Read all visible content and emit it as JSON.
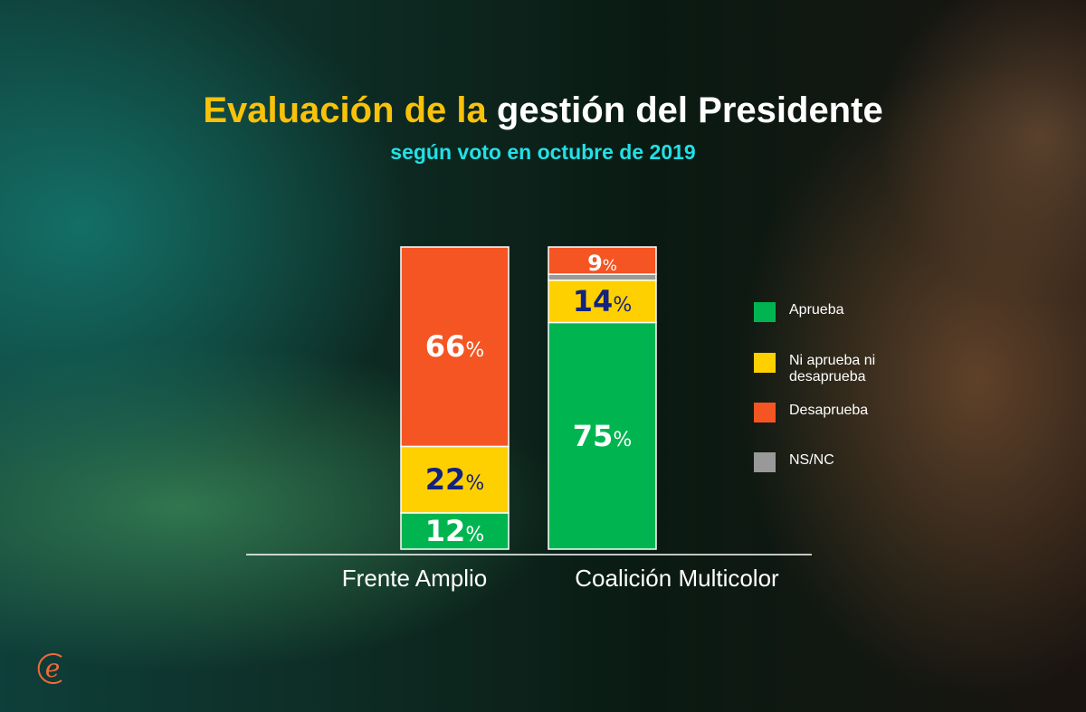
{
  "title": {
    "part1": "Evaluación de la",
    "part2": "gestión del Presidente"
  },
  "subtitle": "según voto en octubre de 2019",
  "colors": {
    "Aprueba": "#00b550",
    "Ni aprueba ni desaprueba": "#ffd000",
    "Desaprueba": "#f45523",
    "NS/NC": "#999999",
    "label_dark": "#13237f"
  },
  "brand_logo": "e",
  "chart_data": {
    "type": "bar",
    "stacked": true,
    "title": "Evaluación de la gestión del Presidente",
    "subtitle": "según voto en octubre de 2019",
    "categories": [
      "Frente Amplio",
      "Coalición Multicolor"
    ],
    "series": [
      {
        "name": "Aprueba",
        "values": [
          12,
          75
        ],
        "labels": [
          "12",
          "75"
        ]
      },
      {
        "name": "Ni aprueba ni desaprueba",
        "values": [
          22,
          14
        ],
        "labels": [
          "22",
          "14"
        ]
      },
      {
        "name": "NS/NC",
        "values": [
          0,
          2
        ],
        "labels": [
          "",
          ""
        ]
      },
      {
        "name": "Desaprueba",
        "values": [
          66,
          9
        ],
        "labels": [
          "66",
          "9"
        ]
      }
    ],
    "ylim": [
      0,
      100
    ],
    "unit": "%",
    "legend": [
      "Aprueba",
      "Ni aprueba ni desaprueba",
      "Desaprueba",
      "NS/NC"
    ],
    "legend_placement": "right"
  }
}
